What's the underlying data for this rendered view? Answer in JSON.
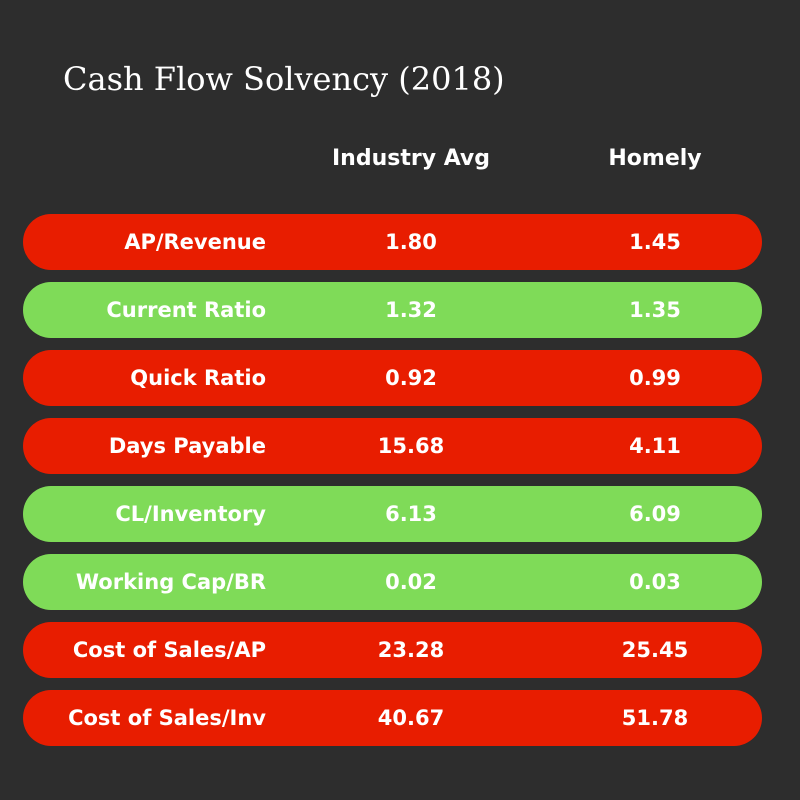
{
  "title": "Cash Flow Solvency (2018)",
  "columns": {
    "industry": "Industry Avg",
    "homely": "Homely"
  },
  "colors": {
    "background": "#2d2d2d",
    "red_row": "#e81d00",
    "green_row": "#7fdb58",
    "text": "#ffffff"
  },
  "rows": [
    {
      "label": "AP/Revenue",
      "industry": "1.80",
      "homely": "1.45",
      "status": "red"
    },
    {
      "label": "Current Ratio",
      "industry": "1.32",
      "homely": "1.35",
      "status": "green"
    },
    {
      "label": "Quick Ratio",
      "industry": "0.92",
      "homely": "0.99",
      "status": "red"
    },
    {
      "label": "Days Payable",
      "industry": "15.68",
      "homely": "4.11",
      "status": "red"
    },
    {
      "label": "CL/Inventory",
      "industry": "6.13",
      "homely": "6.09",
      "status": "green"
    },
    {
      "label": "Working Cap/BR",
      "industry": "0.02",
      "homely": "0.03",
      "status": "green"
    },
    {
      "label": "Cost of Sales/AP",
      "industry": "23.28",
      "homely": "25.45",
      "status": "red"
    },
    {
      "label": "Cost of Sales/Inv",
      "industry": "40.67",
      "homely": "51.78",
      "status": "red"
    }
  ]
}
